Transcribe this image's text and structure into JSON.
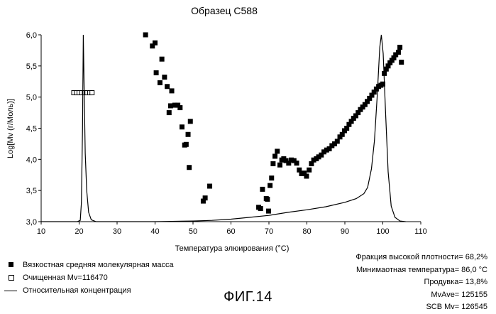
{
  "chart_data": {
    "type": "scatter",
    "title": "Образец С588",
    "xlabel": "Температура элюирования (°C)",
    "ylabel": "Log[Mv (г/Моль)]",
    "xlim": [
      10,
      110
    ],
    "ylim": [
      3.0,
      6.0
    ],
    "x_ticks": [
      "10",
      "20",
      "30",
      "40",
      "50",
      "60",
      "70",
      "80",
      "90",
      "100",
      "110"
    ],
    "y_ticks": [
      "3,0",
      "3,5",
      "4,0",
      "4,5",
      "5,0",
      "5,5",
      "6,0"
    ],
    "grid": false,
    "series": [
      {
        "name": "Вязкостная средняя молекулярная масса",
        "marker": "filled-square",
        "points": [
          [
            37.5,
            6.0
          ],
          [
            39.3,
            5.82
          ],
          [
            40.0,
            5.87
          ],
          [
            40.3,
            5.39
          ],
          [
            41.3,
            5.23
          ],
          [
            41.8,
            5.61
          ],
          [
            42.5,
            5.32
          ],
          [
            43.2,
            5.17
          ],
          [
            43.7,
            4.75
          ],
          [
            44.1,
            4.86
          ],
          [
            44.4,
            5.1
          ],
          [
            45.2,
            4.87
          ],
          [
            46.0,
            4.87
          ],
          [
            46.6,
            4.83
          ],
          [
            47.1,
            4.52
          ],
          [
            47.8,
            4.23
          ],
          [
            48.2,
            4.24
          ],
          [
            48.7,
            4.4
          ],
          [
            49.3,
            4.61
          ],
          [
            49.0,
            3.87
          ],
          [
            52.7,
            3.33
          ],
          [
            53.2,
            3.38
          ],
          [
            54.4,
            3.57
          ],
          [
            67.3,
            3.23
          ],
          [
            67.8,
            3.21
          ],
          [
            68.3,
            3.52
          ],
          [
            69.3,
            3.37
          ],
          [
            69.6,
            3.36
          ],
          [
            69.9,
            3.17
          ],
          [
            70.3,
            3.58
          ],
          [
            70.7,
            3.7
          ],
          [
            71.1,
            3.93
          ],
          [
            71.6,
            4.05
          ],
          [
            72.2,
            4.13
          ],
          [
            72.9,
            3.91
          ],
          [
            73.4,
            3.99
          ],
          [
            73.9,
            4.01
          ],
          [
            74.5,
            3.98
          ],
          [
            75.2,
            3.94
          ],
          [
            75.9,
            3.99
          ],
          [
            76.6,
            3.98
          ],
          [
            77.3,
            3.94
          ],
          [
            78.0,
            3.83
          ],
          [
            78.6,
            3.77
          ],
          [
            79.3,
            3.78
          ],
          [
            79.9,
            3.73
          ],
          [
            80.6,
            3.83
          ],
          [
            81.2,
            3.93
          ],
          [
            81.8,
            3.99
          ],
          [
            82.5,
            4.01
          ],
          [
            83.1,
            4.04
          ],
          [
            83.8,
            4.07
          ],
          [
            84.5,
            4.12
          ],
          [
            85.2,
            4.15
          ],
          [
            85.9,
            4.17
          ],
          [
            86.6,
            4.22
          ],
          [
            87.3,
            4.25
          ],
          [
            88.0,
            4.29
          ],
          [
            88.7,
            4.36
          ],
          [
            89.3,
            4.4
          ],
          [
            89.9,
            4.46
          ],
          [
            90.5,
            4.5
          ],
          [
            91.1,
            4.56
          ],
          [
            91.7,
            4.61
          ],
          [
            92.3,
            4.66
          ],
          [
            92.9,
            4.7
          ],
          [
            93.5,
            4.75
          ],
          [
            94.1,
            4.8
          ],
          [
            94.7,
            4.84
          ],
          [
            95.3,
            4.88
          ],
          [
            95.9,
            4.93
          ],
          [
            96.5,
            4.98
          ],
          [
            97.1,
            5.03
          ],
          [
            97.7,
            5.08
          ],
          [
            98.3,
            5.13
          ],
          [
            98.9,
            5.17
          ],
          [
            99.5,
            5.19
          ],
          [
            100.0,
            5.21
          ],
          [
            100.4,
            5.38
          ],
          [
            100.9,
            5.45
          ],
          [
            101.4,
            5.5
          ],
          [
            101.9,
            5.55
          ],
          [
            102.4,
            5.59
          ],
          [
            102.9,
            5.63
          ],
          [
            103.4,
            5.68
          ],
          [
            104.1,
            5.72
          ],
          [
            104.5,
            5.8
          ],
          [
            104.9,
            5.56
          ]
        ]
      },
      {
        "name": "Очищенная Mv=116470",
        "marker": "open-square",
        "points": [
          [
            18.6,
            5.07
          ],
          [
            19.3,
            5.07
          ],
          [
            20.0,
            5.07
          ],
          [
            20.7,
            5.07
          ],
          [
            21.4,
            5.07
          ],
          [
            22.1,
            5.07
          ],
          [
            22.8,
            5.07
          ],
          [
            23.4,
            5.07
          ]
        ]
      },
      {
        "name": "Относительная концентрация",
        "marker": "line",
        "points": [
          [
            10,
            3.0
          ],
          [
            19.5,
            3.0
          ],
          [
            20.3,
            3.02
          ],
          [
            20.6,
            3.3
          ],
          [
            20.9,
            4.5
          ],
          [
            21.1,
            6.0
          ],
          [
            21.3,
            5.2
          ],
          [
            21.6,
            4.1
          ],
          [
            22.0,
            3.5
          ],
          [
            22.5,
            3.15
          ],
          [
            23.2,
            3.03
          ],
          [
            24.5,
            3.0
          ],
          [
            40,
            3.0
          ],
          [
            50,
            3.01
          ],
          [
            55,
            3.02
          ],
          [
            60,
            3.04
          ],
          [
            65,
            3.07
          ],
          [
            70,
            3.1
          ],
          [
            75,
            3.15
          ],
          [
            80,
            3.19
          ],
          [
            85,
            3.24
          ],
          [
            90,
            3.31
          ],
          [
            93,
            3.37
          ],
          [
            95,
            3.45
          ],
          [
            96,
            3.55
          ],
          [
            97,
            3.85
          ],
          [
            97.8,
            4.3
          ],
          [
            98.5,
            5.0
          ],
          [
            99.2,
            5.8
          ],
          [
            99.6,
            6.0
          ],
          [
            100.1,
            5.7
          ],
          [
            100.7,
            4.8
          ],
          [
            101.4,
            3.8
          ],
          [
            102.2,
            3.25
          ],
          [
            103.2,
            3.07
          ],
          [
            104.5,
            3.01
          ],
          [
            106,
            3.0
          ]
        ]
      }
    ],
    "legend_position": "bottom-left"
  },
  "legend": [
    {
      "symbol": "filled-square",
      "label": "Вязкостная средняя молекулярная масса"
    },
    {
      "symbol": "open-square",
      "label": "Очищенная Mv=116470"
    },
    {
      "symbol": "line",
      "label": "Относительная концентрация"
    }
  ],
  "stats": [
    "Фракция высокой плотности= 68,2%",
    "Минимаотная температура= 86,0 °C",
    "Продувка= 13,8%",
    "MvAve= 125155",
    "SCB Mv= 126545"
  ],
  "figure_caption": "ФИГ.14"
}
